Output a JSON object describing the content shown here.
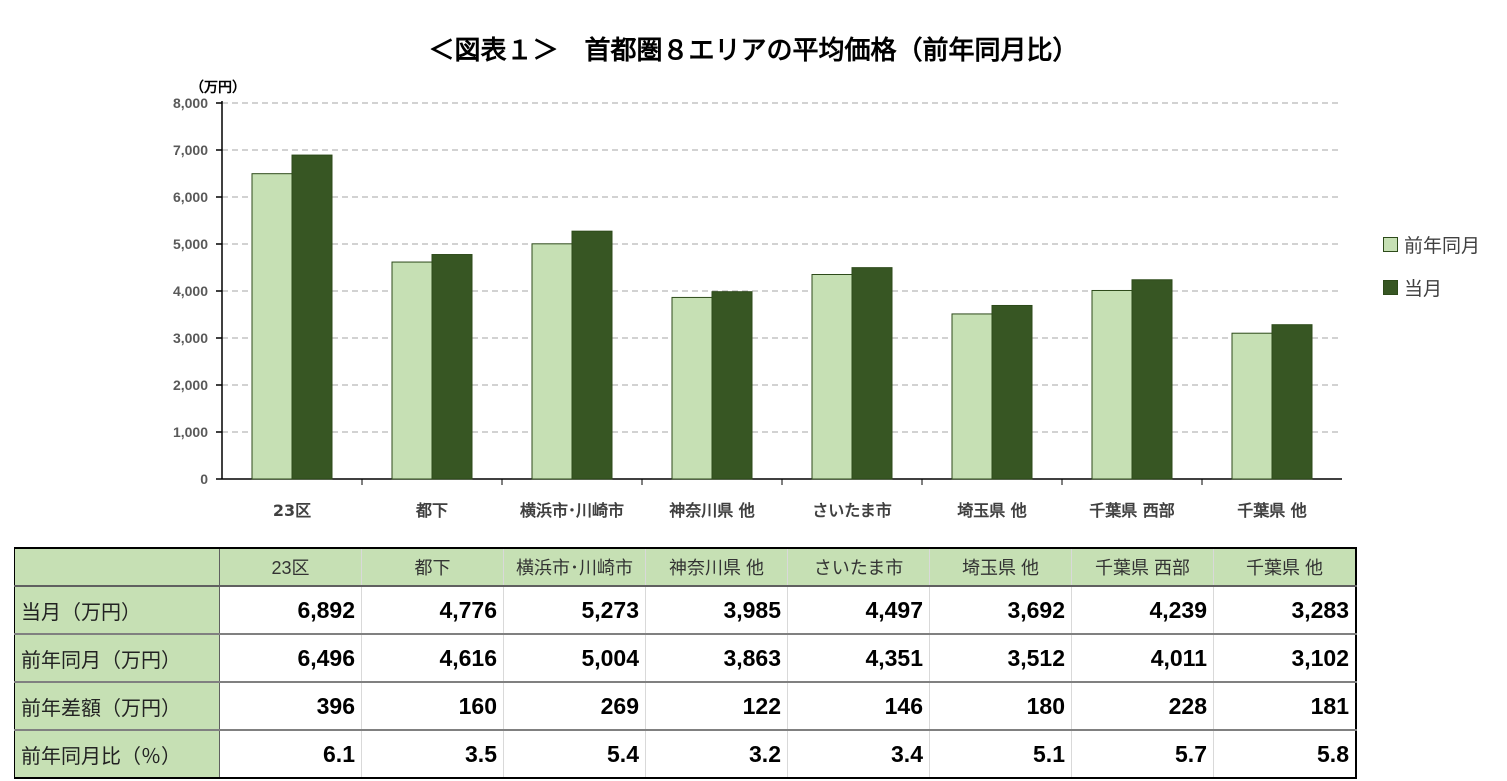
{
  "title": "＜図表１＞　首都圏８エリアの平均価格（前年同月比）",
  "chart_data": {
    "type": "bar",
    "title": "＜図表１＞　首都圏８エリアの平均価格（前年同月比）",
    "ylabel": "（万円）",
    "ylim": [
      0,
      8000
    ],
    "yticks": [
      "0",
      "1,000",
      "2,000",
      "3,000",
      "4,000",
      "5,000",
      "6,000",
      "7,000",
      "8,000"
    ],
    "grid": true,
    "legend_placement": "right",
    "categories": [
      "23区",
      "都下",
      "横浜市･川崎市",
      "神奈川県 他",
      "さいたま市",
      "埼玉県 他",
      "千葉県 西部",
      "千葉県 他"
    ],
    "series": [
      {
        "name": "前年同月",
        "color": "#c6e0b4",
        "values": [
          6496,
          4616,
          5004,
          3863,
          4351,
          3512,
          4011,
          3102
        ]
      },
      {
        "name": "当月",
        "color": "#375623",
        "values": [
          6892,
          4776,
          5273,
          3985,
          4497,
          3692,
          4239,
          3283
        ]
      }
    ]
  },
  "table": {
    "headers": [
      "23区",
      "都下",
      "横浜市･川崎市",
      "神奈川県 他",
      "さいたま市",
      "埼玉県 他",
      "千葉県 西部",
      "千葉県 他"
    ],
    "rows": [
      {
        "label": "当月（万円）",
        "values": [
          "6,892",
          "4,776",
          "5,273",
          "3,985",
          "4,497",
          "3,692",
          "4,239",
          "3,283"
        ]
      },
      {
        "label": "前年同月（万円）",
        "values": [
          "6,496",
          "4,616",
          "5,004",
          "3,863",
          "4,351",
          "3,512",
          "4,011",
          "3,102"
        ]
      },
      {
        "label": "前年差額（万円）",
        "values": [
          "396",
          "160",
          "269",
          "122",
          "146",
          "180",
          "228",
          "181"
        ]
      },
      {
        "label": "前年同月比（％）",
        "values": [
          "6.1",
          "3.5",
          "5.4",
          "3.2",
          "3.4",
          "5.1",
          "5.7",
          "5.8"
        ]
      }
    ]
  }
}
